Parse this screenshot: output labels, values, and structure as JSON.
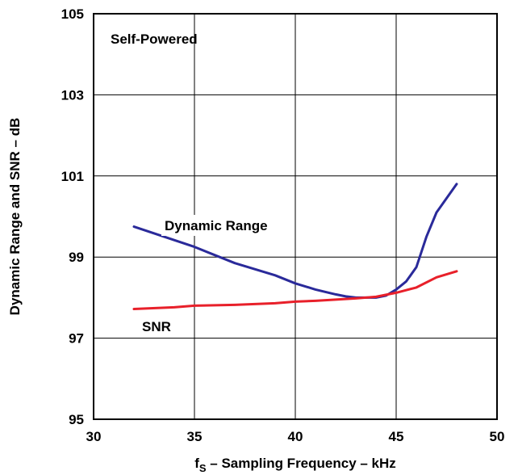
{
  "chart_data": {
    "type": "line",
    "title": "",
    "xlabel_main": "f",
    "xlabel_sub": "S",
    "xlabel_rest": " – Sampling Frequency – kHz",
    "ylabel": "Dynamic Range and SNR – dB",
    "xlim": [
      30,
      50
    ],
    "ylim": [
      95,
      105
    ],
    "xticks": [
      "30",
      "35",
      "40",
      "45",
      "50"
    ],
    "yticks": [
      "95",
      "97",
      "99",
      "101",
      "103",
      "105"
    ],
    "grid": true,
    "annotations": {
      "condition": "Self-Powered",
      "dynamic_range_label": "Dynamic Range",
      "snr_label": "SNR"
    },
    "series": [
      {
        "name": "Dynamic Range",
        "color": "#2a2a9a",
        "x": [
          32,
          33.5,
          35,
          37,
          39,
          40,
          41,
          42,
          42.5,
          43,
          43.5,
          44,
          44.5,
          45,
          45.5,
          46,
          46.5,
          47,
          47.5,
          48
        ],
        "y": [
          99.75,
          99.5,
          99.25,
          98.85,
          98.55,
          98.35,
          98.2,
          98.08,
          98.03,
          98.0,
          98.0,
          98.0,
          98.05,
          98.2,
          98.4,
          98.75,
          99.5,
          100.1,
          100.45,
          100.8
        ]
      },
      {
        "name": "SNR",
        "color": "#e8202a",
        "x": [
          32,
          34,
          35,
          37,
          39,
          40,
          41,
          42,
          43,
          44,
          45,
          46,
          47,
          48
        ],
        "y": [
          97.72,
          97.76,
          97.8,
          97.82,
          97.86,
          97.9,
          97.92,
          97.95,
          97.98,
          98.02,
          98.12,
          98.25,
          98.5,
          98.65
        ]
      }
    ]
  }
}
